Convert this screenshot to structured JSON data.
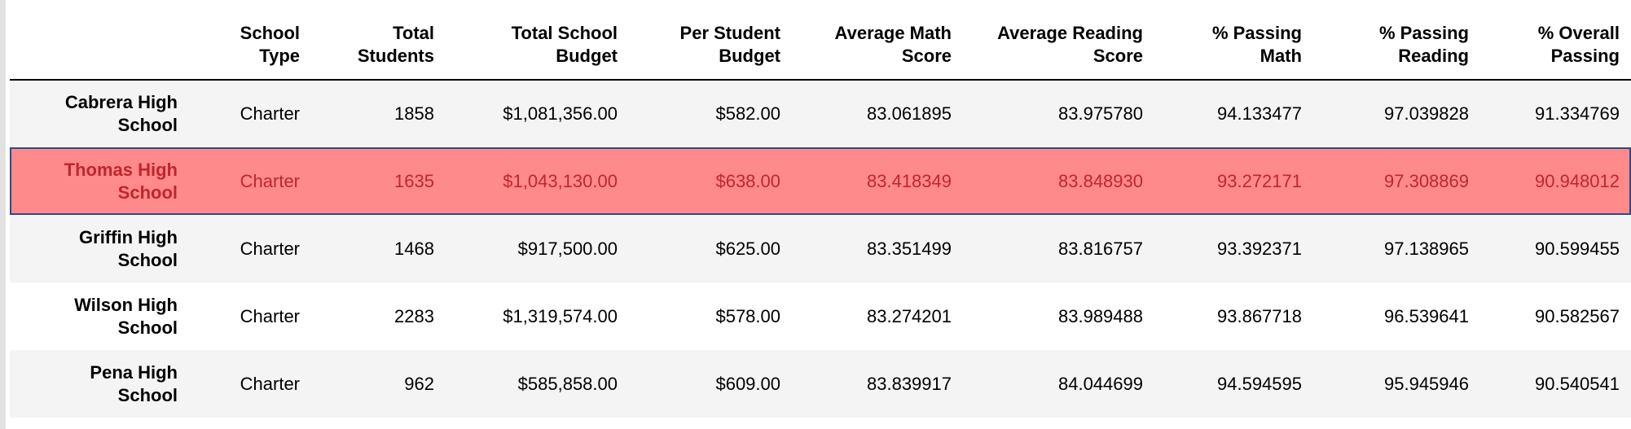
{
  "table": {
    "columns": [
      "",
      "School\nType",
      "Total\nStudents",
      "Total School\nBudget",
      "Per Student\nBudget",
      "Average Math\nScore",
      "Average Reading\nScore",
      "% Passing\nMath",
      "% Passing\nReading",
      "% Overall\nPassing"
    ],
    "rows": [
      {
        "school": "Cabrera High School",
        "cells": [
          "Charter",
          "1858",
          "$1,081,356.00",
          "$582.00",
          "83.061895",
          "83.975780",
          "94.133477",
          "97.039828",
          "91.334769"
        ]
      },
      {
        "school": "Thomas High School",
        "cells": [
          "Charter",
          "1635",
          "$1,043,130.00",
          "$638.00",
          "83.418349",
          "83.848930",
          "93.272171",
          "97.308869",
          "90.948012"
        ]
      },
      {
        "school": "Griffin High School",
        "cells": [
          "Charter",
          "1468",
          "$917,500.00",
          "$625.00",
          "83.351499",
          "83.816757",
          "93.392371",
          "97.138965",
          "90.599455"
        ]
      },
      {
        "school": "Wilson High School",
        "cells": [
          "Charter",
          "2283",
          "$1,319,574.00",
          "$578.00",
          "83.274201",
          "83.989488",
          "93.867718",
          "96.539641",
          "90.582567"
        ]
      },
      {
        "school": "Pena High School",
        "cells": [
          "Charter",
          "962",
          "$585,858.00",
          "$609.00",
          "83.839917",
          "84.044699",
          "94.594595",
          "95.945946",
          "90.540541"
        ]
      }
    ],
    "highlighted_row_index": 1
  },
  "colors": {
    "highlight_fill": "#ff8a8c",
    "highlight_text": "#c0262c",
    "highlight_border": "#2d4a8a",
    "stripe": "#f4f4f4"
  }
}
